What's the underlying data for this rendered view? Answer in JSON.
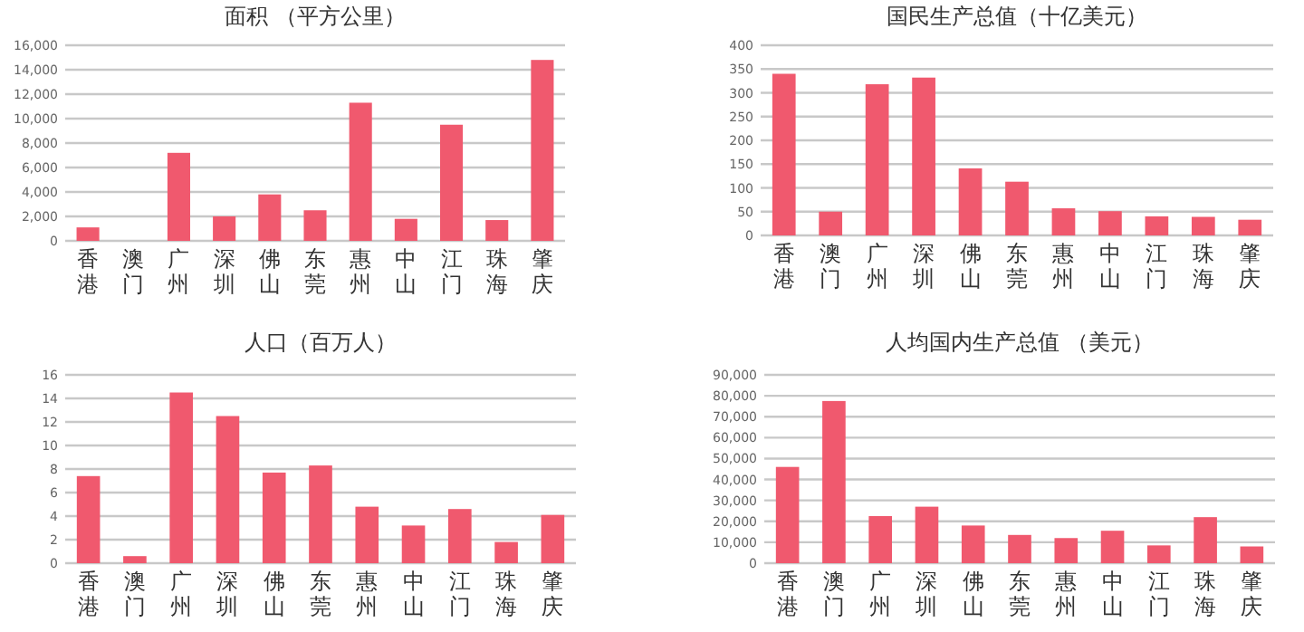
{
  "chart_data": [
    {
      "type": "bar",
      "title": "面积 （平方公里）",
      "categories": [
        "香港",
        "澳门",
        "广州",
        "深圳",
        "佛山",
        "东莞",
        "惠州",
        "中山",
        "江门",
        "珠海",
        "肇庆"
      ],
      "series": [
        {
          "color": "#f0596e",
          "values": [
            1100,
            null,
            7200,
            2000,
            3800,
            2500,
            11300,
            1800,
            9500,
            1700,
            14800
          ]
        }
      ],
      "ylim": [
        0,
        16000
      ],
      "yticks": [
        {
          "value": 0,
          "label": "0"
        },
        {
          "value": 2000,
          "label": "2,000"
        },
        {
          "value": 4000,
          "label": "4,000"
        },
        {
          "value": 6000,
          "label": "6,000"
        },
        {
          "value": 8000,
          "label": "8,000"
        },
        {
          "value": 10000,
          "label": "10,000"
        },
        {
          "value": 12000,
          "label": "12,000"
        },
        {
          "value": 14000,
          "label": "14,000"
        },
        {
          "value": 16000,
          "label": "16,000"
        }
      ],
      "grid": "y"
    },
    {
      "type": "bar",
      "title": "国民生产总值（十亿美元）",
      "categories": [
        "香港",
        "澳门",
        "广州",
        "深圳",
        "佛山",
        "东莞",
        "惠州",
        "中山",
        "江门",
        "珠海",
        "肇庆"
      ],
      "series": [
        {
          "color": "#f0596e",
          "values": [
            340,
            50,
            318,
            332,
            141,
            113,
            57,
            51,
            40,
            39,
            33
          ]
        }
      ],
      "ylim": [
        0,
        400
      ],
      "yticks": [
        0,
        50,
        100,
        150,
        200,
        250,
        300,
        350,
        400
      ],
      "grid": "y"
    },
    {
      "type": "bar",
      "title": "人口（百万人）",
      "categories": [
        "香港",
        "澳门",
        "广州",
        "深圳",
        "佛山",
        "东莞",
        "惠州",
        "中山",
        "江门",
        "珠海",
        "肇庆"
      ],
      "series": [
        {
          "color": "#f0596e",
          "values": [
            7.4,
            0.6,
            14.5,
            12.5,
            7.7,
            8.3,
            4.8,
            3.2,
            4.6,
            1.8,
            4.1
          ]
        }
      ],
      "ylim": [
        0,
        16
      ],
      "yticks": [
        0,
        2,
        4,
        6,
        8,
        10,
        12,
        14,
        16
      ],
      "grid": "y"
    },
    {
      "type": "bar",
      "title": "人均国内生产总值 （美元）",
      "categories": [
        "香港",
        "澳门",
        "广州",
        "深圳",
        "佛山",
        "东莞",
        "惠州",
        "中山",
        "江门",
        "珠海",
        "肇庆"
      ],
      "series": [
        {
          "color": "#f0596e",
          "values": [
            46000,
            77500,
            22500,
            27000,
            18000,
            13500,
            12000,
            15500,
            8500,
            22000,
            8000
          ]
        }
      ],
      "ylim": [
        0,
        90000
      ],
      "yticks": [
        {
          "value": 0,
          "label": "0"
        },
        {
          "value": 10000,
          "label": "10,000"
        },
        {
          "value": 20000,
          "label": "20,000"
        },
        {
          "value": 30000,
          "label": "30,000"
        },
        {
          "value": 40000,
          "label": "40,000"
        },
        {
          "value": 50000,
          "label": "50,000"
        },
        {
          "value": 60000,
          "label": "60,000"
        },
        {
          "value": 70000,
          "label": "70,000"
        },
        {
          "value": 80000,
          "label": "80,000"
        },
        {
          "value": 90000,
          "label": "90,000"
        }
      ],
      "grid": "y"
    }
  ]
}
